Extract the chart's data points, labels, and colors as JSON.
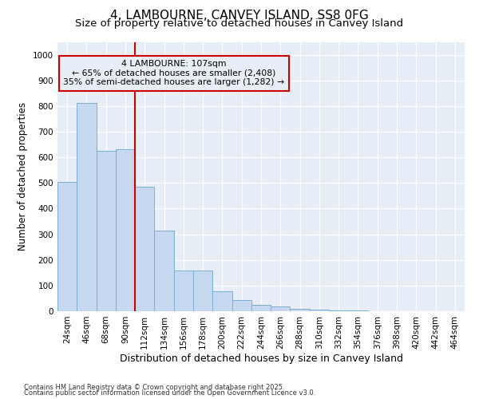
{
  "title1": "4, LAMBOURNE, CANVEY ISLAND, SS8 0FG",
  "title2": "Size of property relative to detached houses in Canvey Island",
  "xlabel": "Distribution of detached houses by size in Canvey Island",
  "ylabel": "Number of detached properties",
  "categories": [
    "24sqm",
    "46sqm",
    "68sqm",
    "90sqm",
    "112sqm",
    "134sqm",
    "156sqm",
    "178sqm",
    "200sqm",
    "222sqm",
    "244sqm",
    "266sqm",
    "288sqm",
    "310sqm",
    "332sqm",
    "354sqm",
    "376sqm",
    "398sqm",
    "420sqm",
    "442sqm",
    "464sqm"
  ],
  "values": [
    505,
    812,
    625,
    630,
    485,
    315,
    160,
    160,
    78,
    45,
    25,
    20,
    10,
    7,
    4,
    2,
    1,
    1,
    0,
    1,
    0
  ],
  "bar_color": "#c5d8f0",
  "bar_edge_color": "#7bafd4",
  "bar_edge_width": 0.7,
  "vline_color": "#cc0000",
  "annotation_line1": "4 LAMBOURNE: 107sqm",
  "annotation_line2": "← 65% of detached houses are smaller (2,408)",
  "annotation_line3": "35% of semi-detached houses are larger (1,282) →",
  "annotation_box_color": "#cc0000",
  "ylim": [
    0,
    1050
  ],
  "yticks": [
    0,
    100,
    200,
    300,
    400,
    500,
    600,
    700,
    800,
    900,
    1000
  ],
  "footnote1": "Contains HM Land Registry data © Crown copyright and database right 2025.",
  "footnote2": "Contains public sector information licensed under the Open Government Licence v3.0.",
  "background_color": "#ffffff",
  "plot_bg_color": "#e8eef8",
  "grid_color": "#ffffff",
  "title_fontsize": 11,
  "subtitle_fontsize": 9.5,
  "tick_fontsize": 7.5,
  "ylabel_fontsize": 8.5,
  "xlabel_fontsize": 9
}
